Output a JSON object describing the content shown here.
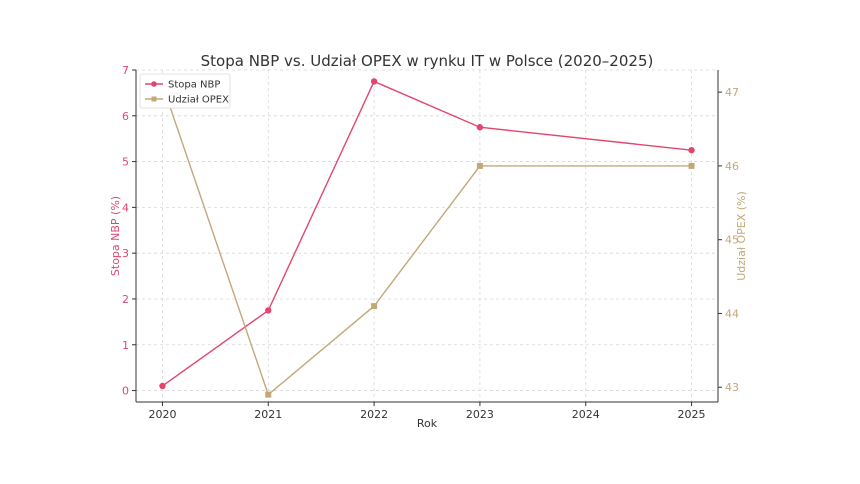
{
  "chart_data": {
    "type": "line",
    "title": "Stopa NBP vs. Udział OPEX w rynku IT w Polsce (2020–2025)",
    "xlabel": "Rok",
    "x": [
      2020,
      2021,
      2022,
      2023,
      2025
    ],
    "x_ticks": [
      "2020",
      "2021",
      "2022",
      "2023",
      "2024",
      "2025"
    ],
    "xlim": [
      2019.75,
      2025.25
    ],
    "grid": true,
    "legend_position": "top-left",
    "left_axis": {
      "label": "Stopa NBP (%)",
      "ylim": [
        -0.25,
        7.0
      ],
      "ticks": [
        "0",
        "1",
        "2",
        "3",
        "4",
        "5",
        "6",
        "7"
      ],
      "color": "#e2466f"
    },
    "right_axis": {
      "label": "Udział OPEX (%)",
      "ylim": [
        42.8,
        47.3
      ],
      "ticks": [
        "43",
        "44",
        "45",
        "46",
        "47"
      ],
      "color": "#c2a878"
    },
    "series": [
      {
        "name": "Stopa NBP",
        "axis": "left",
        "color": "#e2466f",
        "marker": "circle",
        "values": [
          0.1,
          1.75,
          6.75,
          5.75,
          5.25
        ]
      },
      {
        "name": "Udział OPEX",
        "axis": "right",
        "color": "#c2a878",
        "marker": "square",
        "values": [
          47.1,
          42.9,
          44.1,
          46.0,
          46.0
        ]
      }
    ]
  }
}
